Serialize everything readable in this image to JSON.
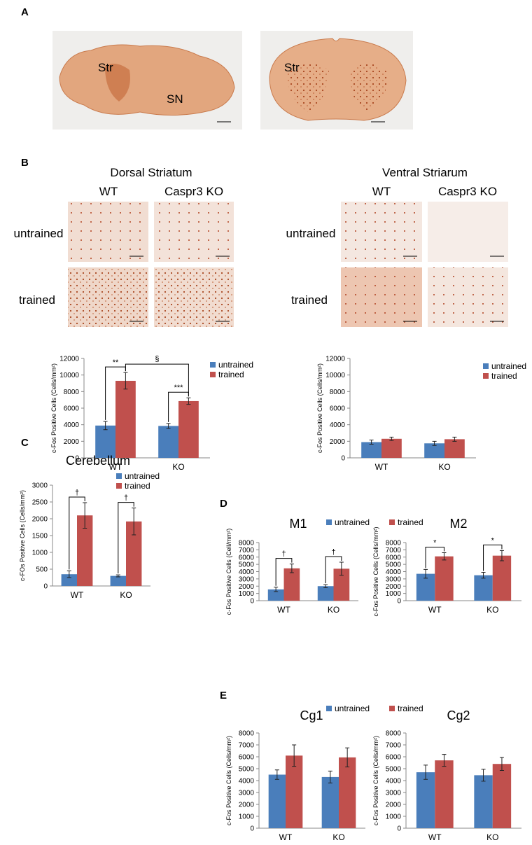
{
  "figure": {
    "panels": [
      "A",
      "B",
      "C",
      "D",
      "E"
    ],
    "panel_a": {
      "labels": [
        "Str",
        "SN",
        "Str"
      ]
    },
    "panel_b": {
      "dorsal_title": "Dorsal Striatum",
      "ventral_title": "Ventral Striarum",
      "columns": [
        "WT",
        "Caspr3 KO",
        "WT",
        "Caspr3 KO"
      ],
      "rows": [
        "untrained",
        "trained",
        "untrained",
        "trained"
      ]
    }
  },
  "chart_data": [
    {
      "type": "bar",
      "y_label": "c-Fos Positive Cells (Cells/mm²)",
      "categories": [
        "WT",
        "KO"
      ],
      "ylim": [
        0,
        12000
      ],
      "yticks": [
        0,
        2000,
        4000,
        6000,
        8000,
        10000,
        12000
      ],
      "series": [
        {
          "name": "untrained",
          "color": "#4a7ebb",
          "values": [
            3900,
            3850
          ],
          "errors": [
            500,
            300
          ]
        },
        {
          "name": "trained",
          "color": "#c0504d",
          "values": [
            9300,
            6850
          ],
          "errors": [
            1000,
            400
          ]
        }
      ],
      "annotations": [
        {
          "text": "**",
          "category": 0
        },
        {
          "text": "***",
          "category": 1
        },
        {
          "text": "§",
          "series": 1
        }
      ]
    },
    {
      "type": "bar",
      "y_label": "c-Fos Positive Cells (Cells/mm²)",
      "categories": [
        "WT",
        "KO"
      ],
      "ylim": [
        0,
        12000
      ],
      "yticks": [
        0,
        2000,
        4000,
        6000,
        8000,
        10000,
        12000
      ],
      "series": [
        {
          "name": "untrained",
          "color": "#4a7ebb",
          "values": [
            1900,
            1750
          ],
          "errors": [
            250,
            250
          ]
        },
        {
          "name": "trained",
          "color": "#c0504d",
          "values": [
            2300,
            2250
          ],
          "errors": [
            200,
            250
          ]
        }
      ]
    },
    {
      "type": "bar",
      "title": "Cerebellum",
      "y_label": "c-FOs Positive Cells (Cells/mm²)",
      "categories": [
        "WT",
        "KO"
      ],
      "ylim": [
        0,
        3000
      ],
      "yticks": [
        0,
        500,
        1000,
        1500,
        2000,
        2500,
        3000
      ],
      "series": [
        {
          "name": "untrained",
          "color": "#4a7ebb",
          "values": [
            350,
            300
          ],
          "errors": [
            100,
            30
          ]
        },
        {
          "name": "trained",
          "color": "#c0504d",
          "values": [
            2100,
            1920
          ],
          "errors": [
            380,
            400
          ]
        }
      ],
      "annotations": [
        {
          "text": "†",
          "category": 0
        },
        {
          "text": "†",
          "category": 1
        }
      ]
    },
    {
      "type": "bar",
      "title": "M1",
      "y_label": "c-Fos Positive Cells (Cell/mm²)",
      "categories": [
        "WT",
        "KO"
      ],
      "ylim": [
        0,
        8000
      ],
      "yticks": [
        0,
        1000,
        2000,
        3000,
        4000,
        5000,
        6000,
        7000,
        8000
      ],
      "series": [
        {
          "name": "untrained",
          "color": "#4a7ebb",
          "values": [
            1550,
            2000
          ],
          "errors": [
            300,
            200
          ]
        },
        {
          "name": "trained",
          "color": "#c0504d",
          "values": [
            4450,
            4400
          ],
          "errors": [
            600,
            900
          ]
        }
      ],
      "annotations": [
        {
          "text": "†",
          "category": 0
        },
        {
          "text": "†",
          "category": 1
        }
      ]
    },
    {
      "type": "bar",
      "title": "M2",
      "y_label": "c-Fos Positive Cells (Cells/mm²)",
      "categories": [
        "WT",
        "KO"
      ],
      "ylim": [
        0,
        8000
      ],
      "yticks": [
        0,
        1000,
        2000,
        3000,
        4000,
        5000,
        6000,
        7000,
        8000
      ],
      "series": [
        {
          "color": "#4a7ebb",
          "values": [
            3700,
            3500
          ],
          "errors": [
            600,
            400
          ]
        },
        {
          "color": "#c0504d",
          "values": [
            6100,
            6200
          ],
          "errors": [
            500,
            700
          ]
        }
      ],
      "annotations": [
        {
          "text": "*",
          "category": 0
        },
        {
          "text": "*",
          "category": 1
        }
      ]
    },
    {
      "type": "bar",
      "title": "Cg1",
      "y_label": "c-Fos Positive Cells (Cells/mm²)",
      "categories": [
        "WT",
        "KO"
      ],
      "ylim": [
        0,
        8000
      ],
      "yticks": [
        0,
        1000,
        2000,
        3000,
        4000,
        5000,
        6000,
        7000,
        8000
      ],
      "series": [
        {
          "name": "untrained",
          "color": "#4a7ebb",
          "values": [
            4500,
            4300
          ],
          "errors": [
            400,
            500
          ]
        },
        {
          "name": "trained",
          "color": "#c0504d",
          "values": [
            6100,
            5950
          ],
          "errors": [
            900,
            800
          ]
        }
      ]
    },
    {
      "type": "bar",
      "title": "Cg2",
      "y_label": "c-Fos Positive Cells (Cells/mm²)",
      "categories": [
        "WT",
        "KO"
      ],
      "ylim": [
        0,
        8000
      ],
      "yticks": [
        0,
        1000,
        2000,
        3000,
        4000,
        5000,
        6000,
        7000,
        8000
      ],
      "series": [
        {
          "color": "#4a7ebb",
          "values": [
            4700,
            4450
          ],
          "errors": [
            600,
            500
          ]
        },
        {
          "color": "#c0504d",
          "values": [
            5700,
            5400
          ],
          "errors": [
            500,
            550
          ]
        }
      ]
    }
  ]
}
